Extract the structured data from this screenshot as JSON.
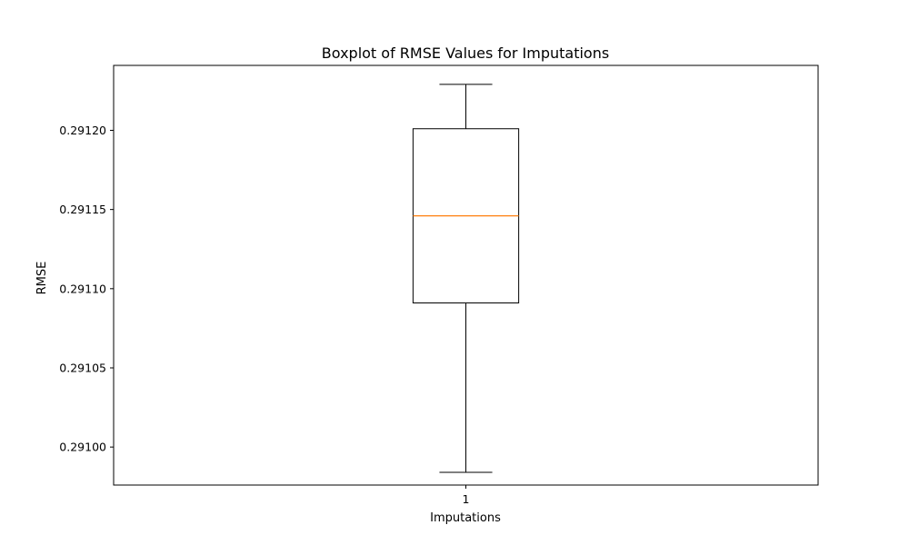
{
  "chart_data": {
    "type": "box",
    "title": "Boxplot of RMSE Values for Imputations",
    "xlabel": "Imputations",
    "ylabel": "RMSE",
    "categories": [
      "1"
    ],
    "boxes": [
      {
        "label": "1",
        "whisker_low": 0.290984,
        "q1": 0.291091,
        "median": 0.291146,
        "q3": 0.291201,
        "whisker_high": 0.291229
      }
    ],
    "ylim": [
      0.290976,
      0.291241
    ],
    "yticks": [
      0.291,
      0.29105,
      0.2911,
      0.29115,
      0.2912
    ],
    "ytick_labels": [
      "0.29100",
      "0.29105",
      "0.29110",
      "0.29115",
      "0.29120"
    ],
    "grid": false,
    "colors": {
      "box": "#000000",
      "median": "#ff7f0e",
      "whisker": "#000000"
    }
  }
}
